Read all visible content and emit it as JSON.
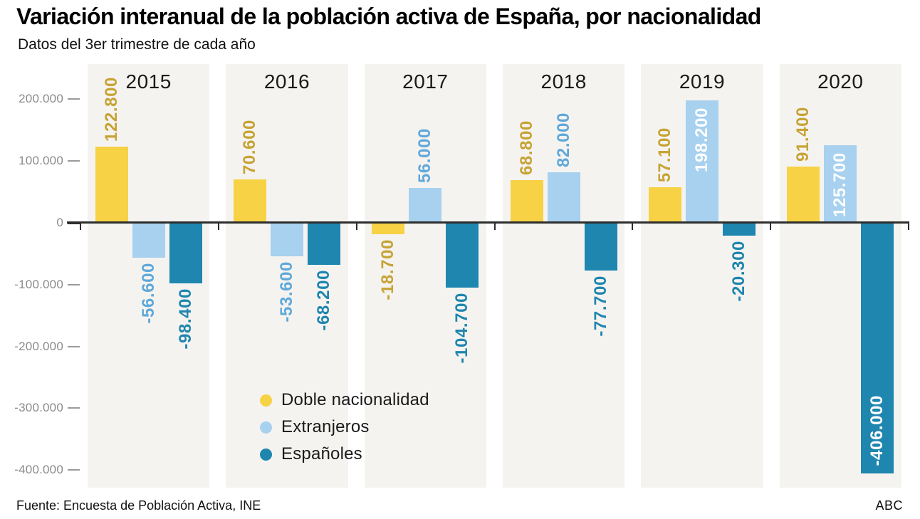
{
  "title": "Variación interanual de la población activa de España, por nacionalidad",
  "subtitle": "Datos del 3er trimestre de cada año",
  "footer": {
    "source": "Fuente: Encuesta de Población Activa, INE",
    "brand": "ABC"
  },
  "legend": [
    {
      "label": "Doble nacionalidad",
      "color": "#F6D244"
    },
    {
      "label": "Extranjeros",
      "color": "#A7D1EF"
    },
    {
      "label": "Españoles",
      "color": "#1E86AF"
    }
  ],
  "colors": {
    "panel_background": "#F5F3F0",
    "axis_text": "#8A8A8A",
    "zero_line": "#2D2D2D",
    "year_text": "#1A1A1A",
    "inside_label": "#FFFFFF"
  },
  "chart_data": {
    "type": "bar",
    "title": "Variación interanual de la población activa de España, por nacionalidad",
    "subtitle": "Datos del 3er trimestre de cada año",
    "categories": [
      "2015",
      "2016",
      "2017",
      "2018",
      "2019",
      "2020"
    ],
    "series": [
      {
        "name": "Doble nacionalidad",
        "color": "#F6D244",
        "label_color": "#C6A334",
        "values": [
          122800,
          70600,
          -18700,
          68800,
          57100,
          91400
        ],
        "labels": [
          "122.800",
          "70.600",
          "-18.700",
          "68.800",
          "57.100",
          "91.400"
        ],
        "label_inside": [
          false,
          false,
          false,
          false,
          false,
          false
        ]
      },
      {
        "name": "Extranjeros",
        "color": "#A7D1EF",
        "label_color": "#5FA8DA",
        "values": [
          -56600,
          -53600,
          56000,
          82000,
          198200,
          125700
        ],
        "labels": [
          "-56.600",
          "-53.600",
          "56.000",
          "82.000",
          "198.200",
          "125.700"
        ],
        "label_inside": [
          false,
          false,
          false,
          false,
          true,
          true
        ]
      },
      {
        "name": "Españoles",
        "color": "#1E86AF",
        "label_color": "#1E86AF",
        "values": [
          -98400,
          -68200,
          -104700,
          -77700,
          -20300,
          -406000
        ],
        "labels": [
          "-98.400",
          "-68.200",
          "-104.700",
          "-77.700",
          "-20.300",
          "-406.000"
        ],
        "label_inside": [
          false,
          false,
          false,
          false,
          false,
          true
        ]
      }
    ],
    "y_ticks": [
      {
        "value": 200000,
        "label": "200.000"
      },
      {
        "value": 100000,
        "label": "100.000"
      },
      {
        "value": 0,
        "label": "0"
      },
      {
        "value": -100000,
        "label": "-100.000"
      },
      {
        "value": -200000,
        "label": "-200.000"
      },
      {
        "value": -300000,
        "label": "-300.000"
      },
      {
        "value": -400000,
        "label": "-400.000"
      }
    ],
    "ylim": [
      -426000,
      257000
    ],
    "xlabel": "",
    "ylabel": "",
    "grid": false,
    "legend_position": "inside-bottom-left"
  }
}
